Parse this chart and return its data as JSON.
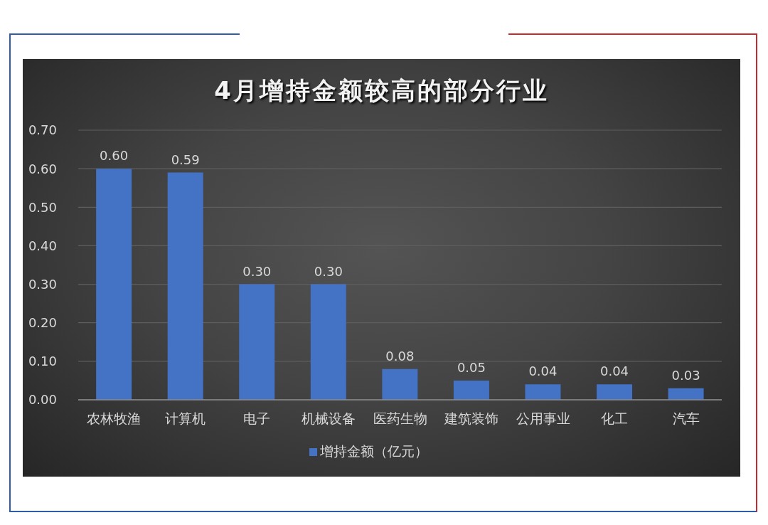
{
  "chart_data": {
    "type": "bar",
    "title": "4月增持金额较高的部分行业",
    "categories": [
      "农林牧渔",
      "计算机",
      "电子",
      "机械设备",
      "医药生物",
      "建筑装饰",
      "公用事业",
      "化工",
      "汽车"
    ],
    "series": [
      {
        "name": "增持金额（亿元）",
        "color": "#4472c4",
        "values": [
          0.6,
          0.59,
          0.3,
          0.3,
          0.08,
          0.05,
          0.04,
          0.04,
          0.03
        ],
        "value_labels": [
          "0.60",
          "0.59",
          "0.30",
          "0.30",
          "0.08",
          "0.05",
          "0.04",
          "0.04",
          "0.03"
        ]
      }
    ],
    "ylim": [
      0,
      0.7
    ],
    "yticks": [
      {
        "value": 0,
        "label": "0.00"
      },
      {
        "value": 0.1,
        "label": "0.10"
      },
      {
        "value": 0.2,
        "label": "0.20"
      },
      {
        "value": 0.3,
        "label": "0.30"
      },
      {
        "value": 0.4,
        "label": "0.40"
      },
      {
        "value": 0.5,
        "label": "0.50"
      },
      {
        "value": 0.6,
        "label": "0.60"
      },
      {
        "value": 0.7,
        "label": "0.70"
      }
    ],
    "grid": "y",
    "legend": "bottom"
  }
}
